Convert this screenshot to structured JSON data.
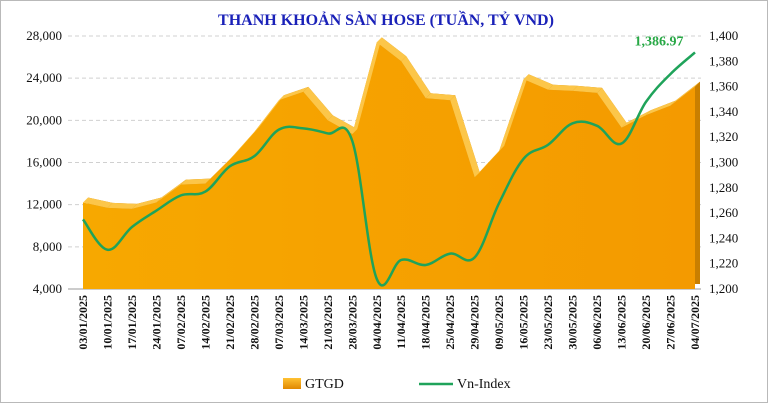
{
  "chart_data": {
    "type": "area+line",
    "title": "THANH KHOẢN SÀN HOSE (TUẦN, TỶ VND)",
    "categories": [
      "03/01/2025",
      "10/01/2025",
      "17/01/2025",
      "24/01/2025",
      "07/02/2025",
      "14/02/2025",
      "21/02/2025",
      "28/02/2025",
      "07/03/2025",
      "14/03/2025",
      "21/03/2025",
      "28/03/2025",
      "04/04/2025",
      "11/04/2025",
      "18/04/2025",
      "25/04/2025",
      "29/04/2025",
      "09/05/2025",
      "16/05/2025",
      "23/05/2025",
      "30/05/2025",
      "06/06/2025",
      "13/06/2025",
      "20/06/2025",
      "27/06/2025",
      "04/07/2025"
    ],
    "series": [
      {
        "name": "GTGD",
        "type": "area",
        "axis": "left",
        "color": "#f5a300",
        "values": [
          12200,
          11700,
          11600,
          12200,
          13900,
          14000,
          16300,
          18900,
          21900,
          22700,
          20000,
          18700,
          27400,
          25600,
          22100,
          21900,
          14600,
          17100,
          23900,
          22900,
          22800,
          22600,
          19300,
          20500,
          21400,
          23200
        ]
      },
      {
        "name": "Vn-Index",
        "type": "line",
        "axis": "right",
        "color": "#1fa35a",
        "values": [
          1255,
          1231,
          1249,
          1262,
          1274,
          1277,
          1297,
          1305,
          1326,
          1327,
          1323,
          1317,
          1208,
          1223,
          1219,
          1228,
          1225,
          1268,
          1303,
          1314,
          1331,
          1329,
          1315,
          1348,
          1370,
          1386.97
        ]
      }
    ],
    "y_left": {
      "min": 4000,
      "max": 28000,
      "step": 4000,
      "ticks": [
        "4,000",
        "8,000",
        "12,000",
        "16,000",
        "20,000",
        "24,000",
        "28,000"
      ]
    },
    "y_right": {
      "min": 1200,
      "max": 1400,
      "step": 20,
      "ticks": [
        "1,200",
        "1,220",
        "1,240",
        "1,260",
        "1,280",
        "1,300",
        "1,320",
        "1,340",
        "1,360",
        "1,380",
        "1,400"
      ]
    },
    "last_value_label": "1,386.97",
    "grid": "horizontal dashed",
    "legend": {
      "position": "bottom",
      "items": [
        {
          "name": "GTGD",
          "label": "GTGD"
        },
        {
          "name": "Vn-Index",
          "label": "Vn-Index"
        }
      ]
    }
  }
}
